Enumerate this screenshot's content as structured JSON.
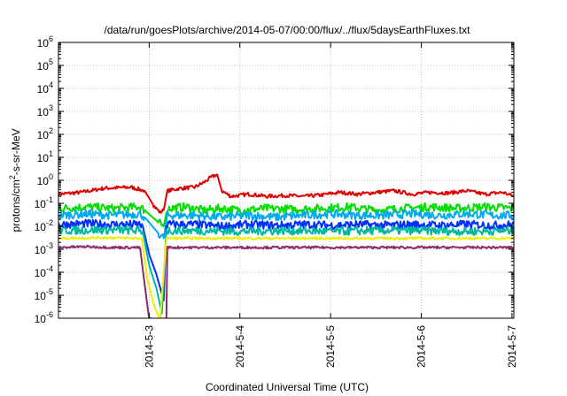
{
  "chart_data": {
    "type": "line",
    "title": "/data/run/goesPlots/archive/2014-05-07/00:00/flux/../flux/5daysEarthFluxes.txt",
    "xlabel": "Coordinated Universal Time (UTC)",
    "ylabel": {
      "base": "protons/cm",
      "sup": "2",
      "rest": "-s-sr-MeV"
    },
    "yscale": "log",
    "ylim": [
      1e-06,
      1000000.0
    ],
    "xlim": [
      2.0,
      7.02
    ],
    "grid": true,
    "ytick_labels": [
      {
        "value": -6,
        "base": "10",
        "exp": "-6"
      },
      {
        "value": -5,
        "base": "10",
        "exp": "-5"
      },
      {
        "value": -4,
        "base": "10",
        "exp": "-4"
      },
      {
        "value": -3,
        "base": "10",
        "exp": "-3"
      },
      {
        "value": -2,
        "base": "10",
        "exp": "-2"
      },
      {
        "value": -1,
        "base": "10",
        "exp": "-1"
      },
      {
        "value": 0,
        "base": "10",
        "exp": "0"
      },
      {
        "value": 1,
        "base": "10",
        "exp": "1"
      },
      {
        "value": 2,
        "base": "10",
        "exp": "2"
      },
      {
        "value": 3,
        "base": "10",
        "exp": "3"
      },
      {
        "value": 4,
        "base": "10",
        "exp": "4"
      },
      {
        "value": 5,
        "base": "10",
        "exp": "5"
      },
      {
        "value": 6,
        "base": "10",
        "exp": "6"
      }
    ],
    "xtick_labels": [
      {
        "value": 3,
        "label": "2014-5-3"
      },
      {
        "value": 4,
        "label": "2014-5-4"
      },
      {
        "value": 5,
        "label": "2014-5-5"
      },
      {
        "value": 6,
        "label": "2014-5-6"
      },
      {
        "value": 7,
        "label": "2014-5-7"
      }
    ],
    "series": [
      {
        "color": "#e00000",
        "points": [
          [
            2.0,
            0.25
          ],
          [
            2.25,
            0.3
          ],
          [
            2.5,
            0.45
          ],
          [
            2.8,
            0.5
          ],
          [
            2.95,
            0.35
          ],
          [
            3.05,
            0.08
          ],
          [
            3.12,
            0.04
          ],
          [
            3.16,
            0.05
          ],
          [
            3.2,
            0.35
          ],
          [
            3.35,
            0.45
          ],
          [
            3.5,
            0.5
          ],
          [
            3.6,
            0.8
          ],
          [
            3.7,
            1.5
          ],
          [
            3.75,
            1.8
          ],
          [
            3.8,
            0.35
          ],
          [
            3.9,
            0.2
          ],
          [
            4.1,
            0.25
          ],
          [
            4.3,
            0.2
          ],
          [
            4.5,
            0.22
          ],
          [
            4.7,
            0.2
          ],
          [
            4.9,
            0.23
          ],
          [
            5.1,
            0.3
          ],
          [
            5.3,
            0.25
          ],
          [
            5.5,
            0.3
          ],
          [
            5.7,
            0.35
          ],
          [
            5.9,
            0.25
          ],
          [
            6.1,
            0.3
          ],
          [
            6.3,
            0.28
          ],
          [
            6.5,
            0.35
          ],
          [
            6.7,
            0.25
          ],
          [
            6.9,
            0.3
          ],
          [
            7.02,
            0.2
          ]
        ]
      },
      {
        "color": "#00e000",
        "points": [
          [
            2.0,
            0.06
          ],
          [
            2.3,
            0.07
          ],
          [
            2.6,
            0.06
          ],
          [
            2.9,
            0.07
          ],
          [
            2.95,
            0.05
          ],
          [
            3.1,
            0.015
          ],
          [
            3.16,
            0.01
          ],
          [
            3.2,
            0.06
          ],
          [
            3.4,
            0.07
          ],
          [
            3.6,
            0.05
          ],
          [
            3.8,
            0.06
          ],
          [
            4.0,
            0.05
          ],
          [
            4.3,
            0.06
          ],
          [
            4.6,
            0.055
          ],
          [
            4.9,
            0.06
          ],
          [
            5.2,
            0.07
          ],
          [
            5.5,
            0.05
          ],
          [
            5.8,
            0.06
          ],
          [
            6.1,
            0.07
          ],
          [
            6.4,
            0.06
          ],
          [
            6.7,
            0.07
          ],
          [
            7.02,
            0.06
          ]
        ]
      },
      {
        "color": "#00aaee",
        "points": [
          [
            2.0,
            0.03
          ],
          [
            2.3,
            0.035
          ],
          [
            2.6,
            0.03
          ],
          [
            2.9,
            0.035
          ],
          [
            2.95,
            0.025
          ],
          [
            3.1,
            0.005
          ],
          [
            3.16,
            0.003
          ],
          [
            3.2,
            0.03
          ],
          [
            3.5,
            0.03
          ],
          [
            3.8,
            0.025
          ],
          [
            4.1,
            0.03
          ],
          [
            4.4,
            0.025
          ],
          [
            4.7,
            0.03
          ],
          [
            5.0,
            0.035
          ],
          [
            5.3,
            0.03
          ],
          [
            5.6,
            0.03
          ],
          [
            5.9,
            0.035
          ],
          [
            6.2,
            0.03
          ],
          [
            6.5,
            0.035
          ],
          [
            6.8,
            0.03
          ],
          [
            7.02,
            0.03
          ]
        ]
      },
      {
        "color": "#0030ff",
        "points": [
          [
            2.0,
            0.012
          ],
          [
            2.3,
            0.013
          ],
          [
            2.6,
            0.012
          ],
          [
            2.9,
            0.012
          ],
          [
            2.93,
            0.01
          ],
          [
            3.0,
            0.0006
          ],
          [
            3.08,
            8e-05
          ],
          [
            3.16,
            6e-06
          ],
          [
            3.19,
            0.012
          ],
          [
            3.5,
            0.012
          ],
          [
            3.8,
            0.01
          ],
          [
            4.1,
            0.012
          ],
          [
            4.4,
            0.011
          ],
          [
            4.7,
            0.012
          ],
          [
            5.0,
            0.011
          ],
          [
            5.3,
            0.012
          ],
          [
            5.6,
            0.011
          ],
          [
            5.9,
            0.012
          ],
          [
            6.2,
            0.011
          ],
          [
            6.5,
            0.012
          ],
          [
            6.8,
            0.011
          ],
          [
            7.02,
            0.012
          ]
        ]
      },
      {
        "color": "#00b8a0",
        "points": [
          [
            2.0,
            0.0065
          ],
          [
            2.5,
            0.007
          ],
          [
            2.9,
            0.0065
          ],
          [
            2.93,
            0.006
          ],
          [
            3.0,
            0.0002
          ],
          [
            3.08,
            2e-05
          ],
          [
            3.14,
            1.6e-06
          ],
          [
            3.19,
            0.0065
          ],
          [
            3.5,
            0.0065
          ],
          [
            4.0,
            0.006
          ],
          [
            4.5,
            0.0065
          ],
          [
            5.0,
            0.006
          ],
          [
            5.5,
            0.0065
          ],
          [
            6.0,
            0.0065
          ],
          [
            6.5,
            0.006
          ],
          [
            7.02,
            0.0065
          ]
        ]
      },
      {
        "color": "#eeee00",
        "points": [
          [
            2.0,
            0.003
          ],
          [
            2.5,
            0.0032
          ],
          [
            2.9,
            0.003
          ],
          [
            2.92,
            0.0028
          ],
          [
            2.98,
            5e-05
          ],
          [
            3.05,
            4e-06
          ],
          [
            3.12,
            8e-07
          ],
          [
            3.19,
            0.003
          ],
          [
            3.5,
            0.003
          ],
          [
            4.0,
            0.003
          ],
          [
            4.5,
            0.003
          ],
          [
            5.0,
            0.003
          ],
          [
            5.5,
            0.003
          ],
          [
            6.0,
            0.003
          ],
          [
            6.5,
            0.003
          ],
          [
            7.02,
            0.003
          ]
        ]
      },
      {
        "color": "#8b2a6c",
        "points": [
          [
            2.0,
            0.0012
          ],
          [
            2.3,
            0.0013
          ],
          [
            2.6,
            0.0012
          ],
          [
            2.88,
            0.0012
          ],
          [
            2.9,
            0.0011
          ],
          [
            2.95,
            3e-05
          ],
          [
            3.0,
            9e-07
          ],
          [
            3.19,
            9e-07
          ],
          [
            3.2,
            0.0012
          ],
          [
            3.5,
            0.0012
          ],
          [
            4.0,
            0.0012
          ],
          [
            4.5,
            0.0012
          ],
          [
            5.0,
            0.0012
          ],
          [
            5.5,
            0.0012
          ],
          [
            6.0,
            0.0012
          ],
          [
            6.5,
            0.0012
          ],
          [
            7.02,
            0.0012
          ]
        ]
      }
    ]
  }
}
